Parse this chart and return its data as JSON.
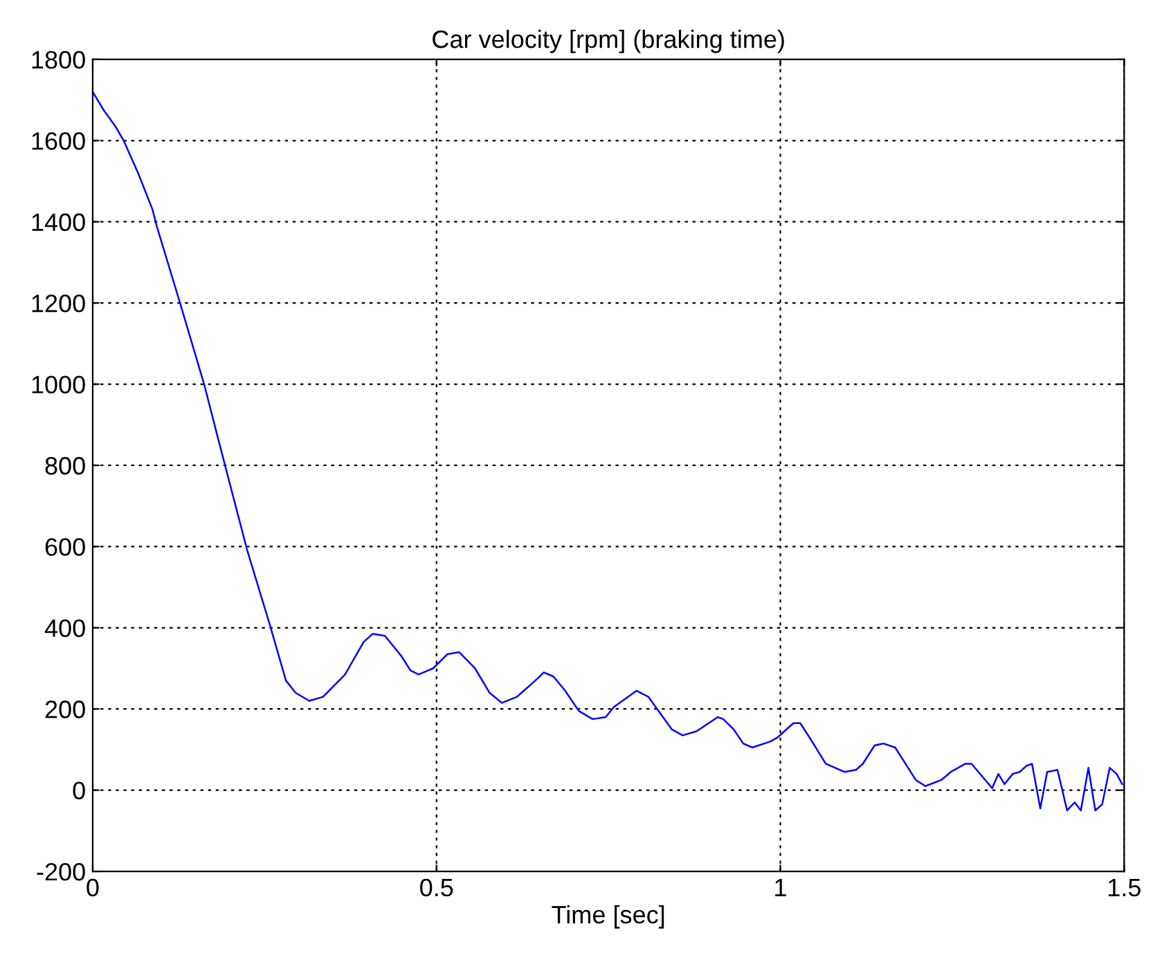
{
  "chart_data": {
    "type": "line",
    "title": "Car velocity [rpm] (braking time)",
    "xlabel": "Time [sec]",
    "x": [
      0,
      0.016,
      0.033,
      0.045,
      0.066,
      0.087,
      0.093,
      0.127,
      0.162,
      0.184,
      0.224,
      0.258,
      0.281,
      0.295,
      0.315,
      0.335,
      0.367,
      0.394,
      0.407,
      0.425,
      0.449,
      0.462,
      0.474,
      0.488,
      0.495,
      0.516,
      0.533,
      0.556,
      0.577,
      0.595,
      0.617,
      0.647,
      0.656,
      0.67,
      0.687,
      0.707,
      0.727,
      0.746,
      0.758,
      0.791,
      0.808,
      0.842,
      0.858,
      0.878,
      0.909,
      0.917,
      0.932,
      0.946,
      0.959,
      0.986,
      0.996,
      1.019,
      1.029,
      1.046,
      1.066,
      1.093,
      1.11,
      1.12,
      1.137,
      1.15,
      1.167,
      1.197,
      1.211,
      1.234,
      1.248,
      1.269,
      1.278,
      1.288,
      1.308,
      1.317,
      1.326,
      1.338,
      1.348,
      1.358,
      1.366,
      1.378,
      1.388,
      1.403,
      1.417,
      1.428,
      1.437,
      1.448,
      1.458,
      1.468,
      1.479,
      1.489,
      1.497
    ],
    "series": [
      {
        "color": "#0000ff",
        "values": [
          1720,
          1675,
          1635,
          1600,
          1520,
          1430,
          1390,
          1200,
          1000,
          855,
          595,
          405,
          270,
          240,
          220,
          230,
          285,
          365,
          385,
          380,
          330,
          295,
          285,
          295,
          300,
          335,
          340,
          300,
          240,
          215,
          230,
          275,
          290,
          280,
          245,
          195,
          175,
          180,
          205,
          245,
          230,
          150,
          135,
          145,
          180,
          175,
          150,
          115,
          105,
          120,
          130,
          165,
          165,
          120,
          65,
          45,
          50,
          65,
          110,
          115,
          105,
          25,
          10,
          25,
          45,
          65,
          65,
          45,
          5,
          40,
          15,
          40,
          45,
          60,
          65,
          -45,
          45,
          50,
          -50,
          -30,
          -50,
          55,
          -50,
          -35,
          55,
          40,
          15
        ]
      }
    ],
    "xlim": [
      0,
      1.5
    ],
    "xticks": [
      0,
      0.5,
      1,
      1.5
    ],
    "ylim": [
      -200,
      1800
    ],
    "yticks": [
      -200,
      0,
      200,
      400,
      600,
      800,
      1000,
      1200,
      1400,
      1600,
      1800
    ],
    "grid": true,
    "line_style": "solid",
    "marker": "none",
    "legend": false
  }
}
